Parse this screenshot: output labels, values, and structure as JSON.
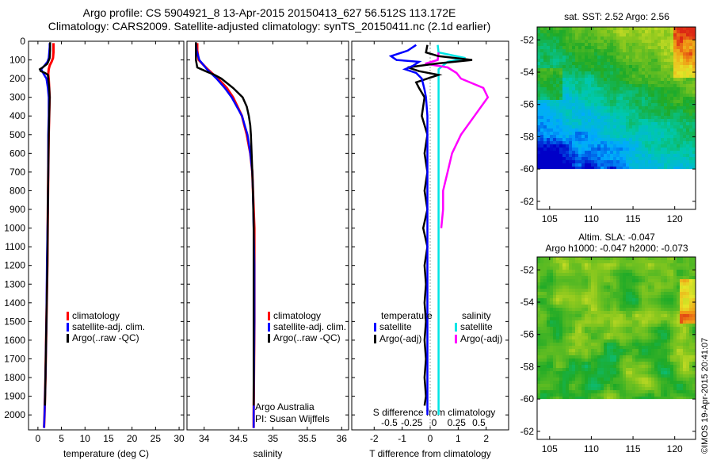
{
  "title_line1": "Argo profile: CS 5904921_8 13-Apr-2015 20150413_627 56.512S 113.172E",
  "title_line2": "Climatology: CARS2009. Satellite-adjusted climatology: synTS_20150411.nc (2.1d earlier)",
  "credit_text": "Argo Australia",
  "pi_text": "PI: Susan Wijffels",
  "watermark": "©IMOS 19-Apr-2015 20:41:07",
  "depth_ticks": [
    0,
    100,
    200,
    300,
    400,
    500,
    600,
    700,
    800,
    900,
    1000,
    1100,
    1200,
    1300,
    1400,
    1500,
    1600,
    1700,
    1800,
    1900,
    2000
  ],
  "colors": {
    "climatology": "#ff0000",
    "satellite": "#0000ff",
    "argo": "#000000",
    "sat_salinity": "#00e5e5",
    "argo_adj_salinity": "#ff00ff"
  },
  "chart_data": [
    {
      "type": "line",
      "xlabel": "temperature (deg C)",
      "ylabel": "",
      "xlim": [
        -2,
        31
      ],
      "ylim": [
        2080,
        0
      ],
      "xticks": [
        0,
        5,
        10,
        15,
        20,
        25,
        30
      ],
      "legend": [
        "climatology",
        "satellite-adj. clim.",
        "Argo(..raw -QC)"
      ],
      "series": [
        {
          "name": "climatology",
          "depth": [
            10,
            30,
            60,
            90,
            110,
            130,
            150,
            175,
            200,
            250,
            300,
            400,
            500,
            700,
            900,
            1200,
            1500,
            1800,
            2000,
            2070
          ],
          "values": [
            3.3,
            3.3,
            3.3,
            3.2,
            2.9,
            2.5,
            2.3,
            2.2,
            2.3,
            2.4,
            2.5,
            2.4,
            2.3,
            2.2,
            2.1,
            2.0,
            1.8,
            1.6,
            1.4,
            1.3
          ]
        },
        {
          "name": "satellite-adj. clim.",
          "depth": [
            10,
            30,
            60,
            90,
            110,
            130,
            150,
            175,
            200,
            250,
            300,
            400,
            500,
            700,
            900,
            1200,
            1500,
            1800,
            2000,
            2070
          ],
          "values": [
            2.5,
            2.5,
            2.4,
            2.3,
            2.0,
            1.4,
            0.7,
            1.2,
            1.8,
            2.1,
            2.3,
            2.3,
            2.2,
            2.2,
            2.1,
            1.9,
            1.8,
            1.6,
            1.4,
            1.3
          ]
        },
        {
          "name": "Argo(..raw -QC)",
          "depth": [
            5,
            50,
            90,
            120,
            140,
            150,
            160,
            170,
            180,
            200,
            250,
            300,
            400,
            500,
            700,
            900,
            1200,
            1500,
            1800,
            1950
          ],
          "values": [
            2.6,
            2.6,
            2.5,
            2.0,
            1.0,
            0.4,
            0.6,
            1.5,
            2.1,
            2.2,
            2.4,
            2.5,
            2.4,
            2.3,
            2.2,
            2.1,
            2.0,
            1.8,
            1.6,
            1.5
          ]
        }
      ]
    },
    {
      "type": "line",
      "xlabel": "salinity",
      "ylabel": "",
      "xlim": [
        33.75,
        36.1
      ],
      "ylim": [
        2080,
        0
      ],
      "xticks": [
        34,
        34.5,
        35,
        35.5,
        36
      ],
      "legend": [
        "climatology",
        "satellite-adj. clim.",
        "Argo(..raw -QC)"
      ],
      "series": [
        {
          "name": "climatology",
          "depth": [
            10,
            50,
            100,
            150,
            200,
            250,
            300,
            400,
            500,
            600,
            700,
            800,
            1000,
            1200,
            1500,
            2000,
            2070
          ],
          "values": [
            33.9,
            33.9,
            33.92,
            34.05,
            34.2,
            34.33,
            34.42,
            34.55,
            34.62,
            34.67,
            34.7,
            34.71,
            34.73,
            34.73,
            34.73,
            34.72,
            34.72
          ]
        },
        {
          "name": "satellite-adj. clim.",
          "depth": [
            10,
            50,
            100,
            150,
            200,
            250,
            300,
            400,
            500,
            600,
            700,
            800,
            1000,
            1200,
            1500,
            2000,
            2070
          ],
          "values": [
            33.88,
            33.89,
            33.93,
            34.04,
            34.18,
            34.3,
            34.4,
            34.55,
            34.63,
            34.67,
            34.7,
            34.71,
            34.72,
            34.73,
            34.73,
            34.72,
            34.72
          ]
        },
        {
          "name": "Argo(..raw -QC)",
          "depth": [
            5,
            100,
            140,
            160,
            180,
            200,
            250,
            300,
            350,
            400,
            450,
            500,
            600,
            700,
            800,
            1000,
            1200,
            1500,
            1800,
            1950
          ],
          "values": [
            33.88,
            33.88,
            33.9,
            34.02,
            34.15,
            34.25,
            34.42,
            34.56,
            34.62,
            34.65,
            34.67,
            34.68,
            34.69,
            34.7,
            34.71,
            34.72,
            34.72,
            34.72,
            34.72,
            34.72
          ]
        }
      ]
    },
    {
      "type": "line",
      "xlabel": "T difference from climatology",
      "xlabel2": "S difference from climatology",
      "xlim": [
        -2.8,
        2.8
      ],
      "ylim": [
        2080,
        0
      ],
      "xticks": [
        -2,
        -1,
        0,
        1,
        2
      ],
      "xticks2": [
        -0.5,
        -0.25,
        0,
        0.25,
        0.5
      ],
      "xticks2_labels": [
        "-0.5",
        "-0.25",
        "0",
        "0.25",
        "0.5"
      ],
      "legend_headers": [
        "temperature",
        "salinity"
      ],
      "legend": [
        "satellite",
        "Argo(-adj)",
        "satellite",
        "Argo(-adj)"
      ],
      "series": [
        {
          "name": "temperature satellite",
          "depth": [
            20,
            50,
            80,
            100,
            110,
            130,
            150,
            170,
            200,
            230,
            260,
            300,
            400,
            500,
            700,
            900,
            1200,
            1500,
            1800,
            2000
          ],
          "values": [
            -0.5,
            -0.8,
            -1.4,
            -1.2,
            -0.4,
            -0.6,
            -0.9,
            -0.5,
            -0.3,
            -0.25,
            -0.2,
            -0.15,
            -0.1,
            -0.1,
            -0.1,
            -0.1,
            -0.1,
            -0.1,
            -0.1,
            -0.1
          ]
        },
        {
          "name": "temperature Argo(-adj)",
          "depth": [
            20,
            60,
            80,
            100,
            120,
            140,
            160,
            180,
            200,
            220,
            250,
            300,
            400,
            500,
            600,
            700,
            800,
            900,
            1000,
            1100,
            1200,
            1300,
            1400,
            1500,
            1600,
            1700,
            1800,
            1900,
            1950
          ],
          "values": [
            -0.1,
            -0.15,
            0.3,
            1.5,
            0.2,
            -0.8,
            -0.4,
            0.3,
            -0.1,
            -0.5,
            -0.4,
            -0.2,
            -0.3,
            -0.1,
            -0.2,
            -0.1,
            -0.2,
            -0.1,
            -0.25,
            -0.1,
            -0.2,
            -0.15,
            -0.2,
            -0.15,
            -0.2,
            -0.15,
            -0.2,
            -0.15,
            -0.2
          ]
        },
        {
          "name": "salinity satellite",
          "depth": [
            20,
            60,
            90,
            110,
            130,
            150,
            200,
            300,
            500,
            800,
            1200,
            1600,
            2000
          ],
          "values": [
            0.04,
            0.05,
            0.35,
            0.15,
            0.1,
            0.05,
            0.05,
            0.05,
            0.05,
            0.05,
            0.05,
            0.05,
            0.05
          ]
        },
        {
          "name": "salinity Argo(-adj)",
          "depth": [
            60,
            100,
            120,
            140,
            170,
            200,
            250,
            300,
            400,
            500,
            600,
            700,
            800,
            900,
            1000
          ],
          "values": [
            0.05,
            0.04,
            -0.1,
            0.15,
            0.25,
            0.3,
            0.55,
            0.6,
            0.45,
            0.3,
            0.2,
            0.15,
            0.1,
            0.1,
            0.08
          ]
        }
      ]
    },
    {
      "type": "heatmap",
      "title": "sat. SST: 2.52 Argo: 2.56",
      "xlim": [
        103.5,
        122.5
      ],
      "ylim": [
        -62.5,
        -51.2
      ],
      "xticks": [
        105,
        110,
        115,
        120
      ],
      "yticks": [
        -52,
        -54,
        -56,
        -58,
        -60,
        -62
      ]
    },
    {
      "type": "heatmap",
      "title": "Altim. SLA: -0.047",
      "subtitle": "Argo h1000: -0.047 h2000: -0.073",
      "xlim": [
        103.5,
        122.5
      ],
      "ylim": [
        -62.5,
        -51.2
      ],
      "xticks": [
        105,
        110,
        115,
        120
      ],
      "yticks": [
        -52,
        -54,
        -56,
        -58,
        -60,
        -62
      ]
    }
  ]
}
